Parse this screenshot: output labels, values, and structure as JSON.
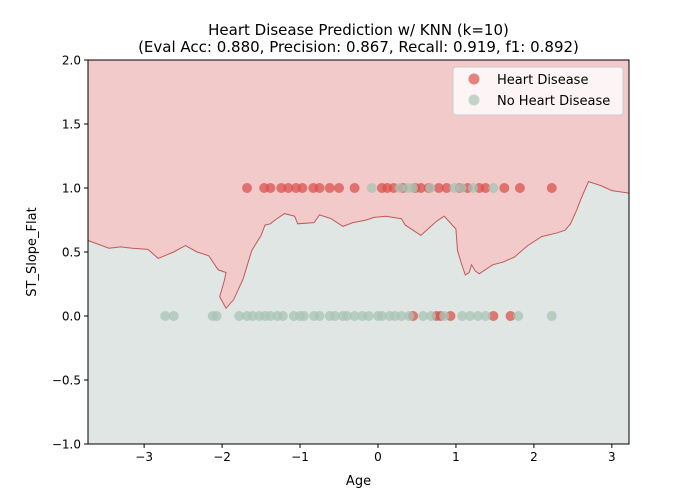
{
  "chart_data": {
    "type": "scatter",
    "title_line1": "Heart Disease Prediction w/ KNN (k=10)",
    "title_line2": "(Eval Acc: 0.880, Precision: 0.867, Recall: 0.919, f1: 0.892)",
    "xlabel": "Age",
    "ylabel": "ST_Slope_Flat",
    "xlim": [
      -3.72,
      3.22
    ],
    "ylim": [
      -1.0,
      2.0
    ],
    "x_ticks": [
      -3,
      -2,
      -1,
      0,
      1,
      2,
      3
    ],
    "x_tick_labels": [
      "−3",
      "−2",
      "−1",
      "0",
      "1",
      "2",
      "3"
    ],
    "y_ticks": [
      -1.0,
      -0.5,
      0.0,
      0.5,
      1.0,
      1.5,
      2.0
    ],
    "y_tick_labels": [
      "−1.0",
      "−0.5",
      "0.0",
      "0.5",
      "1.0",
      "1.5",
      "2.0"
    ],
    "legend_position": "top-right",
    "regions": [
      {
        "name": "Heart Disease",
        "color": "#f2caca"
      },
      {
        "name": "No Heart Disease",
        "color": "#dfe6e3"
      }
    ],
    "decision_boundary": [
      [
        -3.72,
        0.59
      ],
      [
        -3.45,
        0.53
      ],
      [
        -3.3,
        0.54
      ],
      [
        -3.15,
        0.53
      ],
      [
        -2.95,
        0.52
      ],
      [
        -2.82,
        0.45
      ],
      [
        -2.62,
        0.5
      ],
      [
        -2.47,
        0.55
      ],
      [
        -2.32,
        0.5
      ],
      [
        -2.17,
        0.47
      ],
      [
        -2.05,
        0.36
      ],
      [
        -1.95,
        0.34
      ],
      [
        -1.97,
        0.28
      ],
      [
        -2.03,
        0.15
      ],
      [
        -1.95,
        0.06
      ],
      [
        -1.85,
        0.13
      ],
      [
        -1.73,
        0.29
      ],
      [
        -1.62,
        0.51
      ],
      [
        -1.5,
        0.63
      ],
      [
        -1.45,
        0.71
      ],
      [
        -1.38,
        0.72
      ],
      [
        -1.32,
        0.75
      ],
      [
        -1.2,
        0.8
      ],
      [
        -1.07,
        0.78
      ],
      [
        -1.03,
        0.72
      ],
      [
        -0.82,
        0.73
      ],
      [
        -0.75,
        0.79
      ],
      [
        -0.6,
        0.76
      ],
      [
        -0.45,
        0.7
      ],
      [
        -0.32,
        0.73
      ],
      [
        -0.15,
        0.75
      ],
      [
        -0.05,
        0.77
      ],
      [
        0.1,
        0.78
      ],
      [
        0.3,
        0.76
      ],
      [
        0.35,
        0.71
      ],
      [
        0.55,
        0.63
      ],
      [
        0.75,
        0.74
      ],
      [
        0.85,
        0.78
      ],
      [
        1.0,
        0.68
      ],
      [
        1.02,
        0.51
      ],
      [
        1.07,
        0.41
      ],
      [
        1.12,
        0.32
      ],
      [
        1.17,
        0.34
      ],
      [
        1.2,
        0.4
      ],
      [
        1.25,
        0.35
      ],
      [
        1.3,
        0.33
      ],
      [
        1.47,
        0.4
      ],
      [
        1.6,
        0.42
      ],
      [
        1.75,
        0.46
      ],
      [
        1.92,
        0.55
      ],
      [
        2.1,
        0.62
      ],
      [
        2.3,
        0.65
      ],
      [
        2.4,
        0.67
      ],
      [
        2.47,
        0.72
      ],
      [
        2.55,
        0.83
      ],
      [
        2.6,
        0.91
      ],
      [
        2.7,
        1.05
      ],
      [
        2.85,
        1.02
      ],
      [
        3.0,
        0.98
      ],
      [
        3.22,
        0.96
      ]
    ],
    "series": [
      {
        "name": "Heart Disease",
        "color": "#d9534f",
        "points": [
          [
            -1.68,
            1
          ],
          [
            -1.46,
            1
          ],
          [
            -1.38,
            1
          ],
          [
            -1.24,
            1
          ],
          [
            -1.15,
            1
          ],
          [
            -1.05,
            1
          ],
          [
            -0.97,
            1
          ],
          [
            -0.83,
            1
          ],
          [
            -0.75,
            1
          ],
          [
            -0.62,
            1
          ],
          [
            -0.5,
            1
          ],
          [
            -0.3,
            1
          ],
          [
            0.05,
            1
          ],
          [
            0.12,
            1
          ],
          [
            0.2,
            1
          ],
          [
            0.32,
            1
          ],
          [
            0.48,
            1
          ],
          [
            0.55,
            1
          ],
          [
            0.65,
            1
          ],
          [
            0.78,
            1
          ],
          [
            0.88,
            1
          ],
          [
            1.05,
            1
          ],
          [
            1.15,
            1
          ],
          [
            1.3,
            1
          ],
          [
            1.38,
            1
          ],
          [
            1.62,
            1
          ],
          [
            1.82,
            1
          ],
          [
            2.23,
            1
          ],
          [
            0.45,
            0
          ],
          [
            0.75,
            0
          ],
          [
            0.8,
            0
          ],
          [
            0.93,
            0
          ],
          [
            1.48,
            0
          ],
          [
            1.7,
            0
          ]
        ]
      },
      {
        "name": "No Heart Disease",
        "color": "#a8c4b6",
        "points": [
          [
            -0.08,
            1
          ],
          [
            0.28,
            1
          ],
          [
            0.38,
            1
          ],
          [
            0.45,
            1
          ],
          [
            0.67,
            1
          ],
          [
            0.98,
            1
          ],
          [
            1.07,
            1
          ],
          [
            1.22,
            1
          ],
          [
            1.48,
            1
          ],
          [
            -2.73,
            0
          ],
          [
            -2.62,
            0
          ],
          [
            -2.12,
            0
          ],
          [
            -2.07,
            0
          ],
          [
            -1.78,
            0
          ],
          [
            -1.68,
            0
          ],
          [
            -1.61,
            0
          ],
          [
            -1.52,
            0
          ],
          [
            -1.45,
            0
          ],
          [
            -1.38,
            0
          ],
          [
            -1.29,
            0
          ],
          [
            -1.22,
            0
          ],
          [
            -1.08,
            0
          ],
          [
            -1.0,
            0
          ],
          [
            -0.95,
            0
          ],
          [
            -0.82,
            0
          ],
          [
            -0.75,
            0
          ],
          [
            -0.62,
            0
          ],
          [
            -0.55,
            0
          ],
          [
            -0.45,
            0
          ],
          [
            -0.4,
            0
          ],
          [
            -0.3,
            0
          ],
          [
            -0.2,
            0
          ],
          [
            -0.12,
            0
          ],
          [
            0.0,
            0
          ],
          [
            0.05,
            0
          ],
          [
            0.15,
            0
          ],
          [
            0.22,
            0
          ],
          [
            0.3,
            0
          ],
          [
            0.4,
            0
          ],
          [
            0.58,
            0
          ],
          [
            0.68,
            0
          ],
          [
            0.85,
            0
          ],
          [
            1.08,
            0
          ],
          [
            1.18,
            0
          ],
          [
            1.28,
            0
          ],
          [
            1.38,
            0
          ],
          [
            1.8,
            0
          ],
          [
            2.23,
            0
          ]
        ]
      }
    ]
  }
}
